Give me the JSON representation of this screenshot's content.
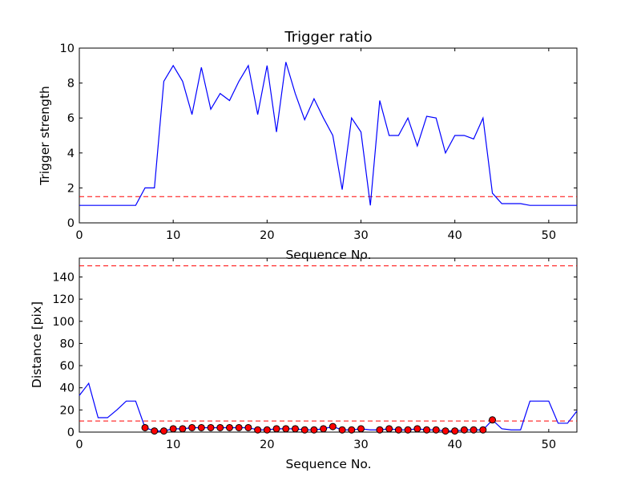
{
  "chart_data": [
    {
      "type": "line",
      "title": "Trigger ratio",
      "xlabel": "Sequence No.",
      "ylabel": "Trigger strength",
      "xlim": [
        0,
        53
      ],
      "ylim": [
        0,
        10
      ],
      "xticks": [
        "0",
        "10",
        "20",
        "30",
        "40",
        "50"
      ],
      "yticks": [
        "0",
        "2",
        "4",
        "6",
        "8",
        "10"
      ],
      "series": [
        {
          "name": "trigger strength",
          "color": "#0000ff",
          "x": [
            0,
            1,
            2,
            3,
            4,
            5,
            6,
            7,
            8,
            9,
            10,
            11,
            12,
            13,
            14,
            15,
            16,
            17,
            18,
            19,
            20,
            21,
            22,
            23,
            24,
            25,
            26,
            27,
            28,
            29,
            30,
            31,
            32,
            33,
            34,
            35,
            36,
            37,
            38,
            39,
            40,
            41,
            42,
            43,
            44,
            45,
            46,
            47,
            48,
            49,
            50,
            51,
            52,
            53
          ],
          "y": [
            1,
            1,
            1,
            1,
            1,
            1,
            1,
            2,
            2,
            8.1,
            9,
            8.1,
            6.2,
            8.9,
            6.5,
            7.4,
            7,
            8.1,
            9,
            6.2,
            9,
            5.2,
            9.2,
            7.4,
            5.9,
            7.1,
            6,
            5,
            1.9,
            6,
            5.2,
            1,
            7,
            5,
            5,
            6,
            4.4,
            6.1,
            6,
            4,
            5,
            5,
            4.8,
            6,
            1.7,
            1.1,
            1.1,
            1.1,
            1,
            1,
            1,
            1,
            1,
            1
          ]
        }
      ],
      "threshold": {
        "y": 1.5,
        "color": "#ff0000",
        "style": "dashed"
      }
    },
    {
      "type": "line",
      "title": "",
      "xlabel": "Sequence No.",
      "ylabel": "Distance [pix]",
      "xlim": [
        0,
        53
      ],
      "ylim": [
        0,
        157
      ],
      "xticks": [
        "0",
        "10",
        "20",
        "30",
        "40",
        "50"
      ],
      "yticks": [
        "0",
        "20",
        "40",
        "60",
        "80",
        "100",
        "120",
        "140"
      ],
      "series": [
        {
          "name": "distance",
          "color": "#0000ff",
          "x": [
            0,
            1,
            2,
            3,
            4,
            5,
            6,
            7,
            8,
            9,
            10,
            11,
            12,
            13,
            14,
            15,
            16,
            17,
            18,
            19,
            20,
            21,
            22,
            23,
            24,
            25,
            26,
            27,
            28,
            29,
            30,
            31,
            32,
            33,
            34,
            35,
            36,
            37,
            38,
            39,
            40,
            41,
            42,
            43,
            44,
            45,
            46,
            47,
            48,
            49,
            50,
            51,
            52,
            53
          ],
          "y": [
            33,
            44,
            13,
            13,
            20,
            28,
            28,
            4,
            1,
            1,
            3,
            3,
            4,
            4,
            4,
            4,
            4,
            4,
            4,
            2,
            2,
            3,
            3,
            3,
            2,
            2,
            3,
            5,
            2,
            2,
            3,
            2,
            2,
            3,
            2,
            2,
            3,
            2,
            2,
            1,
            1,
            2,
            2,
            2,
            11,
            3,
            2,
            2,
            28,
            28,
            28,
            8,
            8,
            19
          ]
        },
        {
          "name": "triggered points",
          "marker": "circle",
          "color": "#ff0000",
          "x": [
            7,
            8,
            9,
            10,
            11,
            12,
            13,
            14,
            15,
            16,
            17,
            18,
            19,
            20,
            21,
            22,
            23,
            24,
            25,
            26,
            27,
            28,
            29,
            30,
            32,
            33,
            34,
            35,
            36,
            37,
            38,
            39,
            40,
            41,
            42,
            43,
            44
          ],
          "y": [
            4,
            1,
            1,
            3,
            3,
            4,
            4,
            4,
            4,
            4,
            4,
            4,
            2,
            2,
            3,
            3,
            3,
            2,
            2,
            3,
            5,
            2,
            2,
            3,
            2,
            3,
            2,
            2,
            3,
            2,
            2,
            1,
            1,
            2,
            2,
            2,
            11
          ]
        }
      ],
      "thresholds": [
        {
          "y": 150,
          "color": "#ff0000",
          "style": "dashed"
        },
        {
          "y": 10,
          "color": "#ff0000",
          "style": "dashed"
        }
      ]
    }
  ]
}
